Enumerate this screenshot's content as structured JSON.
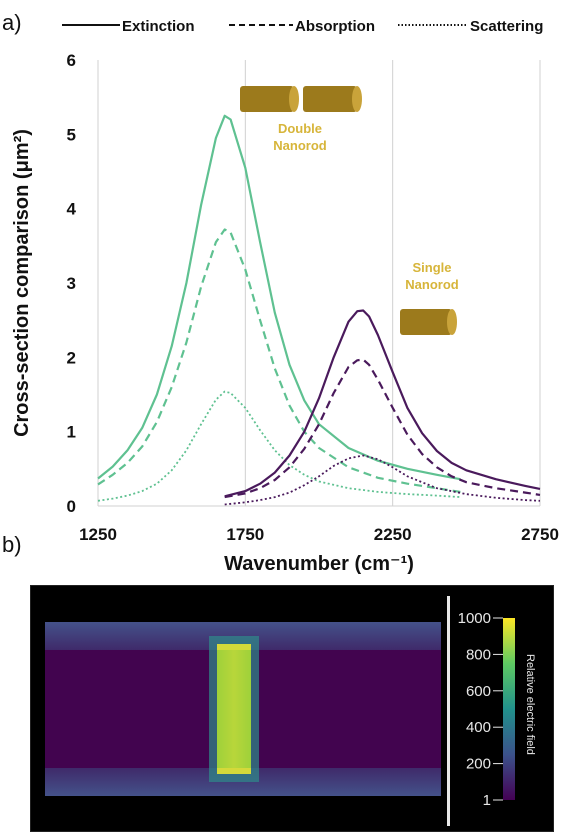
{
  "panel_a_label": "a)",
  "panel_b_label": "b)",
  "chart_data": {
    "type": "line",
    "xlabel": "Wavenumber (cm⁻¹)",
    "ylabel": "Cross-section comparison (μm²)",
    "xlim": [
      1250,
      2750
    ],
    "ylim": [
      0,
      6
    ],
    "xticks": [
      1250,
      1750,
      2250,
      2750
    ],
    "yticks": [
      0,
      1,
      2,
      3,
      4,
      5,
      6
    ],
    "grid": "vertical",
    "legend": {
      "placement": "top",
      "entries": [
        {
          "label": "Extinction",
          "style": "solid"
        },
        {
          "label": "Absorption",
          "style": "dashed"
        },
        {
          "label": "Scattering",
          "style": "dotted"
        }
      ]
    },
    "colors": {
      "double": "#5fc191",
      "single": "#4a1a5c"
    },
    "annotations": [
      {
        "text": "Double Nanorod",
        "lines": [
          "Double",
          "Nanorod"
        ]
      },
      {
        "text": "Single Nanorod",
        "lines": [
          "Single",
          "Nanorod"
        ]
      }
    ],
    "series": [
      {
        "group": "double",
        "kind": "extinction",
        "x": [
          1250,
          1300,
          1350,
          1400,
          1450,
          1500,
          1550,
          1600,
          1650,
          1680,
          1700,
          1750,
          1800,
          1850,
          1900,
          1950,
          2000,
          2100,
          2200,
          2300,
          2400,
          2480
        ],
        "y": [
          0.37,
          0.53,
          0.75,
          1.05,
          1.5,
          2.15,
          3.0,
          4.05,
          4.95,
          5.25,
          5.2,
          4.55,
          3.55,
          2.6,
          1.9,
          1.42,
          1.1,
          0.78,
          0.61,
          0.5,
          0.42,
          0.36
        ]
      },
      {
        "group": "double",
        "kind": "absorption",
        "x": [
          1250,
          1300,
          1350,
          1400,
          1450,
          1500,
          1550,
          1600,
          1650,
          1680,
          1700,
          1750,
          1800,
          1850,
          1900,
          1950,
          2000,
          2100,
          2200,
          2300,
          2400,
          2480
        ],
        "y": [
          0.29,
          0.42,
          0.58,
          0.8,
          1.13,
          1.6,
          2.2,
          2.95,
          3.55,
          3.72,
          3.68,
          3.18,
          2.5,
          1.85,
          1.35,
          1.0,
          0.78,
          0.52,
          0.38,
          0.3,
          0.24,
          0.19
        ]
      },
      {
        "group": "double",
        "kind": "scattering",
        "x": [
          1250,
          1300,
          1350,
          1400,
          1450,
          1500,
          1550,
          1600,
          1650,
          1680,
          1700,
          1750,
          1800,
          1850,
          1900,
          1950,
          2000,
          2100,
          2200,
          2300,
          2400,
          2480
        ],
        "y": [
          0.07,
          0.1,
          0.14,
          0.2,
          0.3,
          0.48,
          0.75,
          1.1,
          1.43,
          1.54,
          1.52,
          1.32,
          1.02,
          0.75,
          0.55,
          0.42,
          0.33,
          0.24,
          0.19,
          0.16,
          0.14,
          0.12
        ]
      },
      {
        "group": "single",
        "kind": "extinction",
        "x": [
          1680,
          1750,
          1800,
          1850,
          1900,
          1950,
          2000,
          2050,
          2100,
          2130,
          2150,
          2170,
          2200,
          2250,
          2300,
          2350,
          2400,
          2450,
          2500,
          2600,
          2700,
          2750
        ],
        "y": [
          0.13,
          0.2,
          0.3,
          0.45,
          0.68,
          1.0,
          1.45,
          2.0,
          2.48,
          2.62,
          2.63,
          2.55,
          2.3,
          1.8,
          1.32,
          0.98,
          0.74,
          0.58,
          0.48,
          0.36,
          0.27,
          0.23
        ]
      },
      {
        "group": "single",
        "kind": "absorption",
        "x": [
          1680,
          1750,
          1800,
          1850,
          1900,
          1950,
          2000,
          2050,
          2100,
          2130,
          2150,
          2170,
          2200,
          2250,
          2300,
          2350,
          2400,
          2450,
          2500,
          2600,
          2700,
          2750
        ],
        "y": [
          0.12,
          0.17,
          0.24,
          0.35,
          0.52,
          0.77,
          1.1,
          1.52,
          1.87,
          1.96,
          1.97,
          1.9,
          1.7,
          1.32,
          0.96,
          0.7,
          0.52,
          0.4,
          0.32,
          0.24,
          0.18,
          0.15
        ]
      },
      {
        "group": "single",
        "kind": "scattering",
        "x": [
          1680,
          1750,
          1800,
          1850,
          1900,
          1950,
          2000,
          2050,
          2100,
          2150,
          2200,
          2250,
          2300,
          2400,
          2500,
          2600,
          2700,
          2750
        ],
        "y": [
          0.02,
          0.05,
          0.08,
          0.12,
          0.18,
          0.28,
          0.4,
          0.54,
          0.64,
          0.68,
          0.63,
          0.52,
          0.4,
          0.24,
          0.16,
          0.11,
          0.08,
          0.07
        ]
      }
    ]
  },
  "field_map": {
    "colorbar_title": "Relative electric field",
    "colorbar_ticks": [
      "1000",
      "800",
      "600",
      "400",
      "200",
      "1"
    ],
    "colorbar_colors": [
      "#440154",
      "#3b528b",
      "#21918c",
      "#5ec962",
      "#fde725"
    ]
  }
}
